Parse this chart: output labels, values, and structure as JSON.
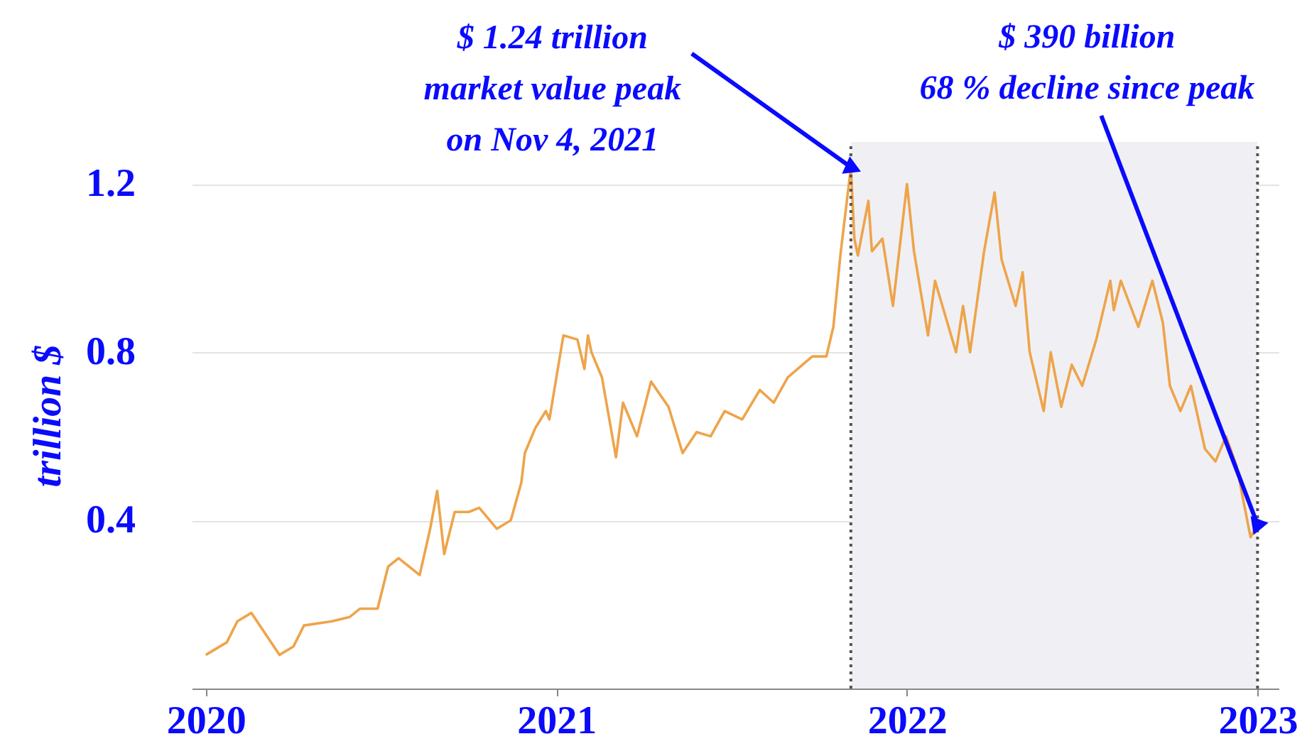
{
  "chart_data": {
    "type": "line",
    "ylabel": "trillion $",
    "x": [
      2020.0,
      2020.06,
      2020.09,
      2020.13,
      2020.17,
      2020.21,
      2020.25,
      2020.28,
      2020.36,
      2020.41,
      2020.44,
      2020.49,
      2020.52,
      2020.55,
      2020.61,
      2020.64,
      2020.66,
      2020.68,
      2020.71,
      2020.75,
      2020.78,
      2020.83,
      2020.87,
      2020.9,
      2020.91,
      2020.94,
      2020.97,
      2020.98,
      2021.02,
      2021.06,
      2021.08,
      2021.09,
      2021.1,
      2021.13,
      2021.17,
      2021.19,
      2021.23,
      2021.27,
      2021.32,
      2021.36,
      2021.4,
      2021.44,
      2021.48,
      2021.53,
      2021.58,
      2021.62,
      2021.66,
      2021.73,
      2021.77,
      2021.79,
      2021.81,
      2021.84,
      2021.85,
      2021.86,
      2021.89,
      2021.9,
      2021.93,
      2021.96,
      2022.0,
      2022.02,
      2022.06,
      2022.08,
      2022.14,
      2022.16,
      2022.18,
      2022.22,
      2022.25,
      2022.27,
      2022.31,
      2022.33,
      2022.35,
      2022.39,
      2022.41,
      2022.44,
      2022.47,
      2022.5,
      2022.54,
      2022.58,
      2022.59,
      2022.61,
      2022.66,
      2022.7,
      2022.73,
      2022.75,
      2022.78,
      2022.81,
      2022.85,
      2022.88,
      2022.91,
      2022.94,
      2022.98,
      2023.0
    ],
    "series": [
      {
        "color": "#eea44a",
        "values": [
          0.08,
          0.11,
          0.16,
          0.18,
          0.13,
          0.08,
          0.1,
          0.15,
          0.16,
          0.17,
          0.19,
          0.19,
          0.29,
          0.31,
          0.27,
          0.38,
          0.47,
          0.32,
          0.42,
          0.42,
          0.43,
          0.38,
          0.4,
          0.49,
          0.56,
          0.62,
          0.66,
          0.64,
          0.84,
          0.83,
          0.76,
          0.84,
          0.8,
          0.74,
          0.55,
          0.68,
          0.6,
          0.73,
          0.67,
          0.56,
          0.61,
          0.6,
          0.66,
          0.64,
          0.71,
          0.68,
          0.74,
          0.79,
          0.79,
          0.86,
          1.03,
          1.24,
          1.07,
          1.03,
          1.16,
          1.04,
          1.07,
          0.91,
          1.2,
          1.04,
          0.84,
          0.97,
          0.8,
          0.91,
          0.8,
          1.04,
          1.18,
          1.02,
          0.91,
          0.99,
          0.8,
          0.66,
          0.8,
          0.67,
          0.77,
          0.72,
          0.83,
          0.97,
          0.9,
          0.97,
          0.86,
          0.97,
          0.87,
          0.72,
          0.66,
          0.72,
          0.57,
          0.54,
          0.6,
          0.53,
          0.36,
          0.39
        ]
      }
    ],
    "xlim": [
      2019.96,
      2023.06
    ],
    "xticks": [
      2020,
      2021,
      2022,
      2023
    ],
    "ylim": [
      0,
      1.3
    ],
    "yticks": [
      0.4,
      0.8,
      1.2
    ],
    "grid": "y",
    "bands": [
      {
        "axis": "x",
        "from": 2021.84,
        "to": 2023.0,
        "color": "#f0f0f4"
      }
    ],
    "ref_lines": [
      {
        "axis": "x",
        "value": 2021.84,
        "color": "#555555",
        "line_style": "dotted"
      },
      {
        "axis": "x",
        "value": 2023.0,
        "color": "#555555",
        "line_style": "dotted"
      }
    ],
    "annotations": [
      {
        "text": "$ 1.24 trillion\nmarket value peak\non Nov 4, 2021",
        "x": 2021.84,
        "y": 1.24
      },
      {
        "text": "$ 390 billion\n68 % decline since peak",
        "x": 2023.0,
        "y": 0.39
      }
    ]
  }
}
